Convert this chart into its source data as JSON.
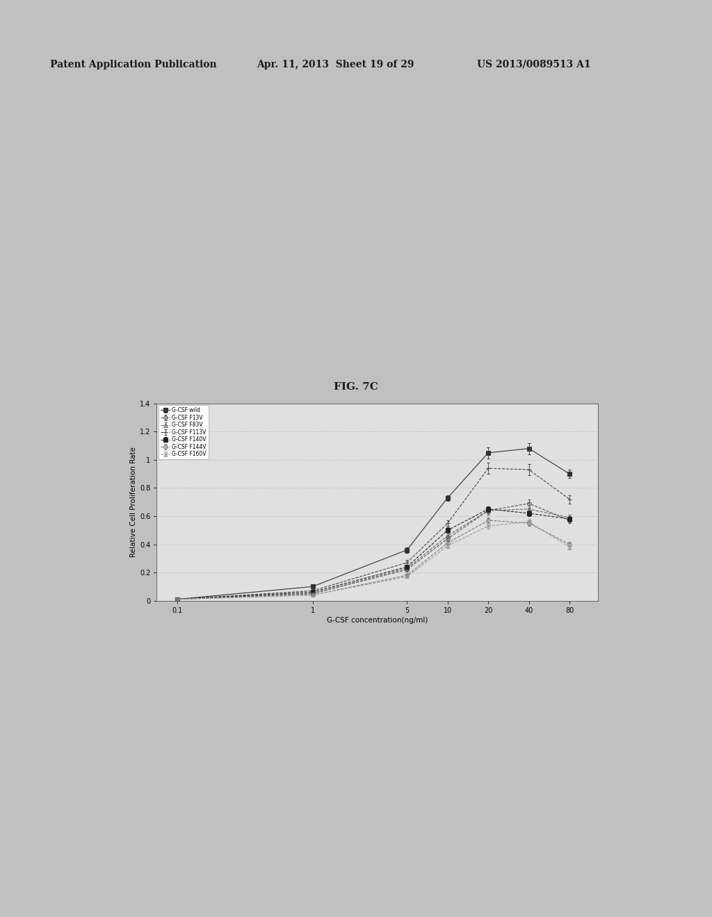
{
  "header_left": "Patent Application Publication",
  "header_mid": "Apr. 11, 2013  Sheet 19 of 29",
  "header_right": "US 2013/0089513 A1",
  "fig_label": "FIG. 7C",
  "xlabel": "G-CSF concentration(ng/ml)",
  "ylabel": "Relative Cell Proliferation Rate",
  "x_ticks": [
    0.1,
    1,
    5,
    10,
    20,
    40,
    80
  ],
  "x_tick_labels": [
    "0.1",
    "1",
    "5",
    "10",
    "20",
    "40",
    "80"
  ],
  "ylim": [
    0,
    1.4
  ],
  "y_ticks": [
    0,
    0.2,
    0.4,
    0.6,
    0.8,
    1.0,
    1.2,
    1.4
  ],
  "y_tick_labels": [
    "0",
    "0.2",
    "0.4",
    "0.6",
    "0.8",
    "1",
    "1.2",
    "1.4"
  ],
  "series": [
    {
      "label": "G-CSF wild",
      "marker": "s",
      "linestyle": "-",
      "color": "#333333",
      "fillstyle": "full",
      "x": [
        0.1,
        1,
        5,
        10,
        20,
        40,
        80
      ],
      "y": [
        0.01,
        0.1,
        0.36,
        0.73,
        1.05,
        1.08,
        0.9
      ],
      "yerr": [
        0.01,
        0.01,
        0.02,
        0.02,
        0.04,
        0.04,
        0.03
      ]
    },
    {
      "label": "G-CSF F13V",
      "marker": "o",
      "linestyle": "--",
      "color": "#555555",
      "fillstyle": "none",
      "x": [
        0.1,
        1,
        5,
        10,
        20,
        40,
        80
      ],
      "y": [
        0.01,
        0.05,
        0.22,
        0.44,
        0.64,
        0.69,
        0.57
      ],
      "yerr": [
        0.005,
        0.005,
        0.01,
        0.02,
        0.03,
        0.03,
        0.02
      ]
    },
    {
      "label": "G-CSF F83V",
      "marker": "^",
      "linestyle": "--",
      "color": "#666666",
      "fillstyle": "none",
      "x": [
        0.1,
        1,
        5,
        10,
        20,
        40,
        80
      ],
      "y": [
        0.01,
        0.05,
        0.23,
        0.46,
        0.64,
        0.65,
        0.59
      ],
      "yerr": [
        0.005,
        0.005,
        0.01,
        0.02,
        0.02,
        0.03,
        0.02
      ]
    },
    {
      "label": "G-CSF F113V",
      "marker": "+",
      "linestyle": "--",
      "color": "#444444",
      "fillstyle": "full",
      "x": [
        0.1,
        1,
        5,
        10,
        20,
        40,
        80
      ],
      "y": [
        0.01,
        0.07,
        0.27,
        0.55,
        0.94,
        0.93,
        0.72
      ],
      "yerr": [
        0.005,
        0.01,
        0.02,
        0.02,
        0.04,
        0.04,
        0.03
      ]
    },
    {
      "label": "G-CSF F140V",
      "marker": "s",
      "linestyle": "--",
      "color": "#222222",
      "fillstyle": "full",
      "x": [
        0.1,
        1,
        5,
        10,
        20,
        40,
        80
      ],
      "y": [
        0.01,
        0.06,
        0.24,
        0.5,
        0.65,
        0.62,
        0.58
      ],
      "yerr": [
        0.005,
        0.005,
        0.01,
        0.02,
        0.02,
        0.02,
        0.02
      ]
    },
    {
      "label": "G-CSF F144V",
      "marker": "o",
      "linestyle": "--",
      "color": "#777777",
      "fillstyle": "none",
      "x": [
        0.1,
        1,
        5,
        10,
        20,
        40,
        80
      ],
      "y": [
        0.01,
        0.04,
        0.18,
        0.41,
        0.57,
        0.55,
        0.4
      ],
      "yerr": [
        0.005,
        0.005,
        0.01,
        0.015,
        0.02,
        0.02,
        0.015
      ]
    },
    {
      "label": "G-CSF F160V",
      "marker": "x",
      "linestyle": "--",
      "color": "#999999",
      "fillstyle": "full",
      "x": [
        0.1,
        1,
        5,
        10,
        20,
        40,
        80
      ],
      "y": [
        0.01,
        0.04,
        0.17,
        0.39,
        0.53,
        0.56,
        0.38
      ],
      "yerr": [
        0.005,
        0.005,
        0.01,
        0.015,
        0.02,
        0.02,
        0.015
      ]
    }
  ],
  "background_color": "#e8e8e8",
  "plot_bg_color": "#e8e8e8",
  "page_bg_color": "#c8c8c8"
}
